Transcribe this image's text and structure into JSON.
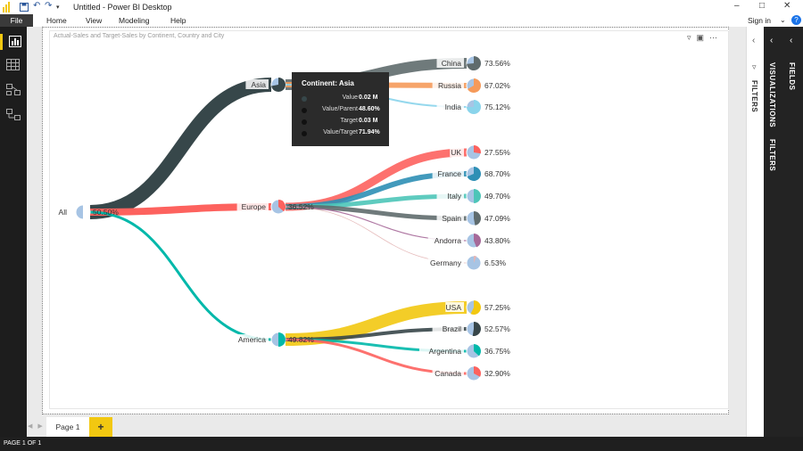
{
  "window": {
    "title": "Untitled - Power BI Desktop",
    "sign_in": "Sign in"
  },
  "ribbon": {
    "tabs": [
      "File",
      "Home",
      "View",
      "Modeling",
      "Help"
    ]
  },
  "visual": {
    "title": "Actual-Sales and Target-Sales by Continent, Country and City"
  },
  "pages": {
    "tab": "Page 1",
    "add": "+",
    "status": "PAGE 1 OF 1"
  },
  "panes": {
    "filters": "FILTERS",
    "visualizations": "VISUALIZATIONS",
    "fields": "FIELDS"
  },
  "colors": {
    "asia": "#37474a",
    "europe": "#fd625e",
    "america": "#01b8aa",
    "gauge_bg": "#a7c4e4",
    "accent": "#f2c811"
  },
  "tooltip": {
    "header": "Continent: Asia",
    "rows": [
      {
        "label": "Value",
        "value": "0.02 M"
      },
      {
        "label": "Value/Parent",
        "value": "48.60%"
      },
      {
        "label": "Target",
        "value": "0.03 M"
      },
      {
        "label": "Value/Target",
        "value": "71.94%"
      }
    ]
  },
  "chart_data": {
    "type": "decomposition-tree",
    "root": {
      "label": "All",
      "value_label": "50.50%"
    },
    "continents": [
      {
        "label": "Asia",
        "value_label": "",
        "color": "#37474a",
        "children": [
          {
            "label": "China",
            "value_label": "73.56%",
            "color": "#5f6b6d"
          },
          {
            "label": "Russia",
            "value_label": "67.02%",
            "color": "#f59a5a"
          },
          {
            "label": "India",
            "value_label": "75.12%",
            "color": "#8ad4eb"
          }
        ]
      },
      {
        "label": "Europe",
        "value_label": "36.52%",
        "color": "#fd625e",
        "children": [
          {
            "label": "UK",
            "value_label": "27.55%",
            "color": "#fd625e"
          },
          {
            "label": "France",
            "value_label": "68.70%",
            "color": "#2e8fb5"
          },
          {
            "label": "Italy",
            "value_label": "49.70%",
            "color": "#4dc5b8"
          },
          {
            "label": "Spain",
            "value_label": "47.09%",
            "color": "#5f6b6d"
          },
          {
            "label": "Andorra",
            "value_label": "43.80%",
            "color": "#a66999"
          },
          {
            "label": "Germany",
            "value_label": "6.53%",
            "color": "#e3b5b5"
          }
        ]
      },
      {
        "label": "America",
        "value_label": "49.82%",
        "color": "#01b8aa",
        "children": [
          {
            "label": "USA",
            "value_label": "57.25%",
            "color": "#f2c811"
          },
          {
            "label": "Brazil",
            "value_label": "52.57%",
            "color": "#374649"
          },
          {
            "label": "Argentina",
            "value_label": "36.75%",
            "color": "#01b8aa"
          },
          {
            "label": "Canada",
            "value_label": "32.90%",
            "color": "#fd625e"
          }
        ]
      }
    ]
  }
}
